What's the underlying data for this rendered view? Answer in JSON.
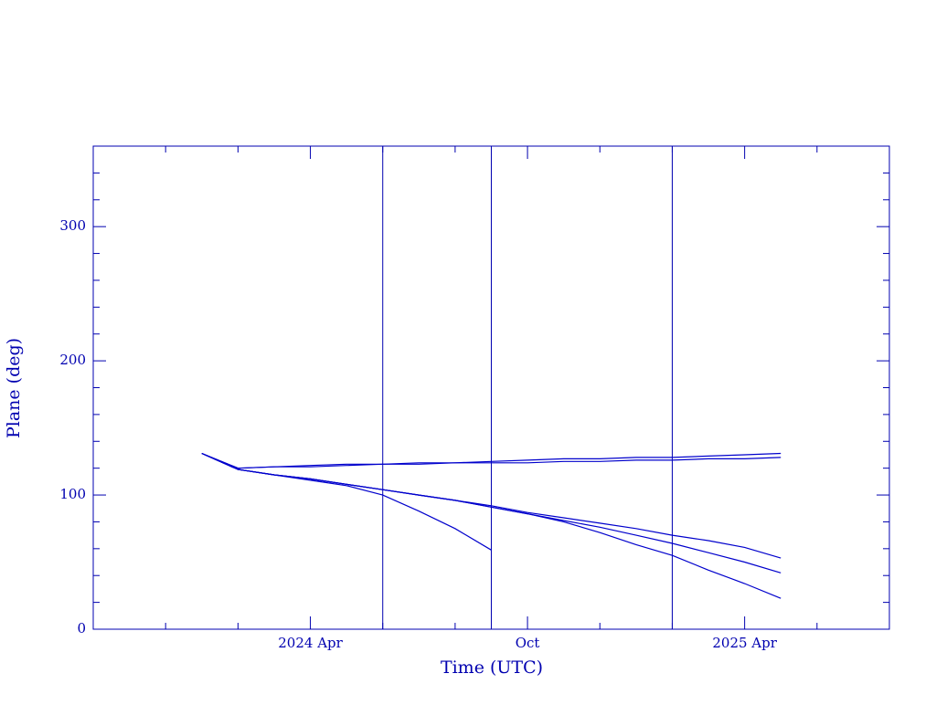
{
  "chart_data": {
    "type": "line",
    "xlabel": "Time (UTC)",
    "ylabel": "Plane (deg)",
    "x": [
      "2024-01",
      "2024-02",
      "2024-03",
      "2024-04",
      "2024-05",
      "2024-06",
      "2024-07",
      "2024-08",
      "2024-09",
      "2024-10",
      "2024-11",
      "2024-12",
      "2025-01",
      "2025-02",
      "2025-03",
      "2025-04",
      "2025-05"
    ],
    "series": [
      {
        "color": "#0000cc",
        "values": [
          131,
          120,
          121,
          122,
          123,
          123,
          124,
          124,
          125,
          126,
          127,
          127,
          128,
          128,
          129,
          130,
          131
        ]
      },
      {
        "color": "#0000cc",
        "values": [
          131,
          120,
          121,
          121,
          122,
          123,
          123,
          124,
          124,
          124,
          125,
          125,
          126,
          126,
          127,
          127,
          128
        ]
      },
      {
        "color": "#0000cc",
        "values": [
          131,
          119,
          115,
          112,
          108,
          104,
          100,
          96,
          92,
          87,
          83,
          79,
          75,
          70,
          66,
          61,
          53
        ]
      },
      {
        "color": "#0000cc",
        "values": [
          131,
          119,
          115,
          112,
          108,
          104,
          100,
          96,
          91,
          86,
          81,
          76,
          70,
          64,
          57,
          50,
          42
        ]
      },
      {
        "color": "#0000cc",
        "values": [
          131,
          119,
          115,
          112,
          108,
          104,
          100,
          96,
          91,
          86,
          80,
          72,
          63,
          55,
          44,
          34,
          23
        ]
      },
      {
        "color": "#0000cc",
        "values": [
          131,
          119,
          115,
          111,
          107,
          100,
          88,
          75,
          59,
          null,
          null,
          null,
          null,
          null,
          null,
          null,
          null
        ]
      }
    ],
    "markers": [
      "2024-06",
      "2024-09",
      "2025-02"
    ],
    "xlim": [
      "2023-10",
      "2025-08"
    ],
    "xticks": [
      {
        "value": "2024-04",
        "label": "2024 Apr"
      },
      {
        "value": "2024-10",
        "label": "Oct"
      },
      {
        "value": "2025-04",
        "label": "2025 Apr"
      }
    ],
    "xminorticks": [
      "2023-12",
      "2024-02",
      "2024-06",
      "2024-08",
      "2024-12",
      "2025-02",
      "2025-06"
    ],
    "ylim": [
      0,
      360
    ],
    "yticks": [
      0,
      100,
      200,
      300
    ],
    "yminorticks": [
      20,
      40,
      60,
      80,
      120,
      140,
      160,
      180,
      220,
      240,
      260,
      280,
      320,
      340
    ],
    "axis_color": "#0000b0"
  }
}
